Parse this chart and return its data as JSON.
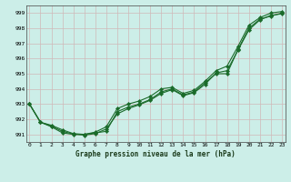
{
  "title": "Graphe pression niveau de la mer (hPa)",
  "bg_color": "#cceee8",
  "grid_color": "#b8ddd8",
  "line_color": "#1a6b2a",
  "marker_color": "#1a6b2a",
  "ylim": [
    990.5,
    999.5
  ],
  "yticks": [
    991,
    992,
    993,
    994,
    995,
    996,
    997,
    998,
    999
  ],
  "xlim": [
    -0.3,
    23.3
  ],
  "xticks": [
    0,
    1,
    2,
    3,
    4,
    5,
    6,
    7,
    8,
    9,
    10,
    11,
    12,
    13,
    14,
    15,
    16,
    17,
    18,
    19,
    20,
    21,
    22,
    23
  ],
  "series": [
    [
      993.0,
      991.8,
      991.5,
      991.1,
      991.0,
      991.0,
      991.1,
      991.2,
      992.5,
      992.8,
      993.0,
      993.3,
      993.8,
      994.0,
      993.6,
      993.8,
      994.4,
      995.0,
      995.0,
      996.6,
      998.0,
      998.6,
      998.8,
      999.0
    ],
    [
      993.0,
      991.8,
      991.6,
      991.3,
      991.05,
      991.0,
      991.15,
      991.5,
      992.7,
      993.0,
      993.2,
      993.5,
      994.0,
      994.1,
      993.7,
      993.9,
      994.5,
      995.2,
      995.5,
      996.8,
      998.2,
      998.7,
      999.0,
      999.1
    ],
    [
      993.0,
      991.8,
      991.55,
      991.2,
      991.02,
      990.95,
      991.05,
      991.35,
      992.35,
      992.7,
      992.95,
      993.25,
      993.7,
      993.95,
      993.55,
      993.75,
      994.3,
      995.05,
      995.2,
      996.55,
      997.9,
      998.55,
      998.85,
      998.95
    ]
  ]
}
